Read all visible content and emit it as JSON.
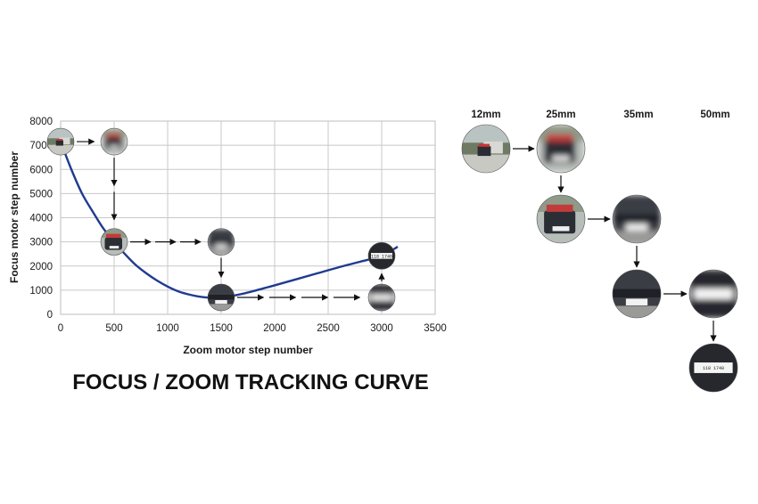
{
  "main_title": "FOCUS / ZOOM TRACKING CURVE",
  "focal_lengths": [
    "12mm",
    "25mm",
    "35mm",
    "50mm"
  ],
  "plate_text": "118 1740",
  "colors": {
    "curve": "#1f3b8f",
    "grid": "#c8c8c8",
    "arrow": "#111111"
  },
  "chart_data": {
    "type": "line",
    "title": "",
    "xlabel": "Zoom motor step number",
    "ylabel": "Focus motor step number",
    "xlim": [
      0,
      3500
    ],
    "ylim": [
      0,
      8000
    ],
    "xticks": [
      0,
      500,
      1000,
      1500,
      2000,
      2500,
      3000,
      3500
    ],
    "yticks": [
      0,
      1000,
      2000,
      3000,
      4000,
      5000,
      6000,
      7000,
      8000
    ],
    "grid": true,
    "series": [
      {
        "x": [
          0,
          100,
          200,
          300,
          400,
          500,
          600,
          700,
          800,
          900,
          1000,
          1100,
          1200,
          1300,
          1400,
          1500,
          1600,
          1700,
          1800,
          1900,
          2000,
          2200,
          2400,
          2600,
          2800,
          3000,
          3150
        ],
        "y": [
          7150,
          6000,
          5000,
          4250,
          3550,
          3000,
          2500,
          2050,
          1700,
          1400,
          1150,
          950,
          820,
          730,
          690,
          700,
          760,
          850,
          960,
          1080,
          1200,
          1450,
          1700,
          1950,
          2180,
          2420,
          2800
        ]
      }
    ],
    "image_markers": [
      {
        "focal": "12mm",
        "x": 0,
        "y": 7150,
        "blur": false
      },
      {
        "focal": "25mm",
        "x": 500,
        "y": 7150,
        "blur": true
      },
      {
        "focal": "25mm",
        "x": 500,
        "y": 3000,
        "blur": false
      },
      {
        "focal": "35mm",
        "x": 1500,
        "y": 3000,
        "blur": true
      },
      {
        "focal": "35mm",
        "x": 1500,
        "y": 700,
        "blur": false
      },
      {
        "focal": "50mm",
        "x": 3000,
        "y": 700,
        "blur": true
      },
      {
        "focal": "50mm",
        "x": 3000,
        "y": 2420,
        "blur": false
      }
    ]
  }
}
